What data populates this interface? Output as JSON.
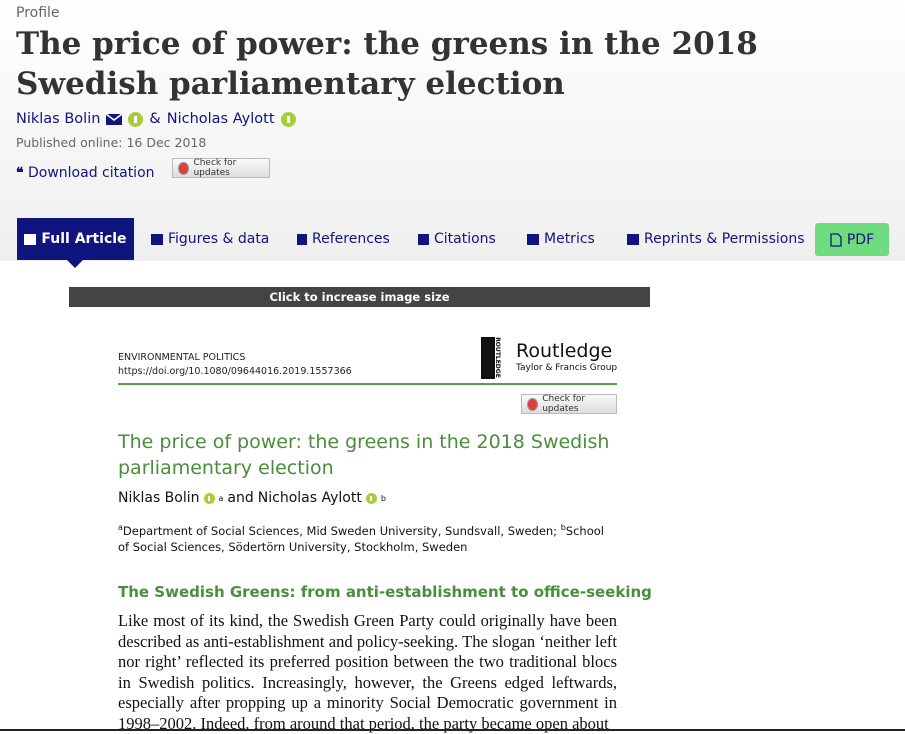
{
  "header": {
    "label": "Profile",
    "title": "The price of power: the greens in the 2018 Swedish parliamentary election",
    "authors": [
      "Niklas Bolin",
      "Nicholas Aylott"
    ],
    "author_sep": "&",
    "published": "Published online: 16 Dec 2018",
    "download_citation": "Download citation",
    "check_updates": "Check for updates"
  },
  "tabs": [
    "Full Article",
    "Figures & data",
    "References",
    "Citations",
    "Metrics",
    "Reprints & Permissions",
    "PDF"
  ],
  "preview": {
    "banner": "Click to increase image size",
    "journal": "ENVIRONMENTAL POLITICS",
    "doi": "https://doi.org/10.1080/09644016.2019.1557366",
    "publisher_vertical": "ROUTLEDGE",
    "publisher": "Routledge",
    "publisher_sub": "Taylor & Francis Group",
    "check_updates": "Check for updates",
    "title": "The price of power: the greens in the 2018 Swedish parliamentary election",
    "authors": [
      {
        "name": "Niklas Bolin",
        "sup": "a"
      },
      {
        "name": "Nicholas Aylott",
        "sup": "b"
      }
    ],
    "author_sep": "and",
    "affiliations": [
      {
        "sup": "a",
        "text": "Department of Social Sciences, Mid Sweden University, Sundsvall, Sweden;"
      },
      {
        "sup": "b",
        "text": "School of Social Sciences, Södertörn University, Stockholm, Sweden"
      }
    ],
    "section_heading": "The Swedish Greens: from anti-establishment to office-seeking",
    "body": "Like most of its kind, the Swedish Green Party could originally have been described as anti-establishment and policy-seeking. The slogan ‘neither left nor right’ reflected its preferred position between the two traditional blocs in Swedish politics. Increasingly, however, the Greens edged leftwards, especially after propping up a minority Social Democratic government in 1998–2002. Indeed, from around that period, the party became open about"
  }
}
